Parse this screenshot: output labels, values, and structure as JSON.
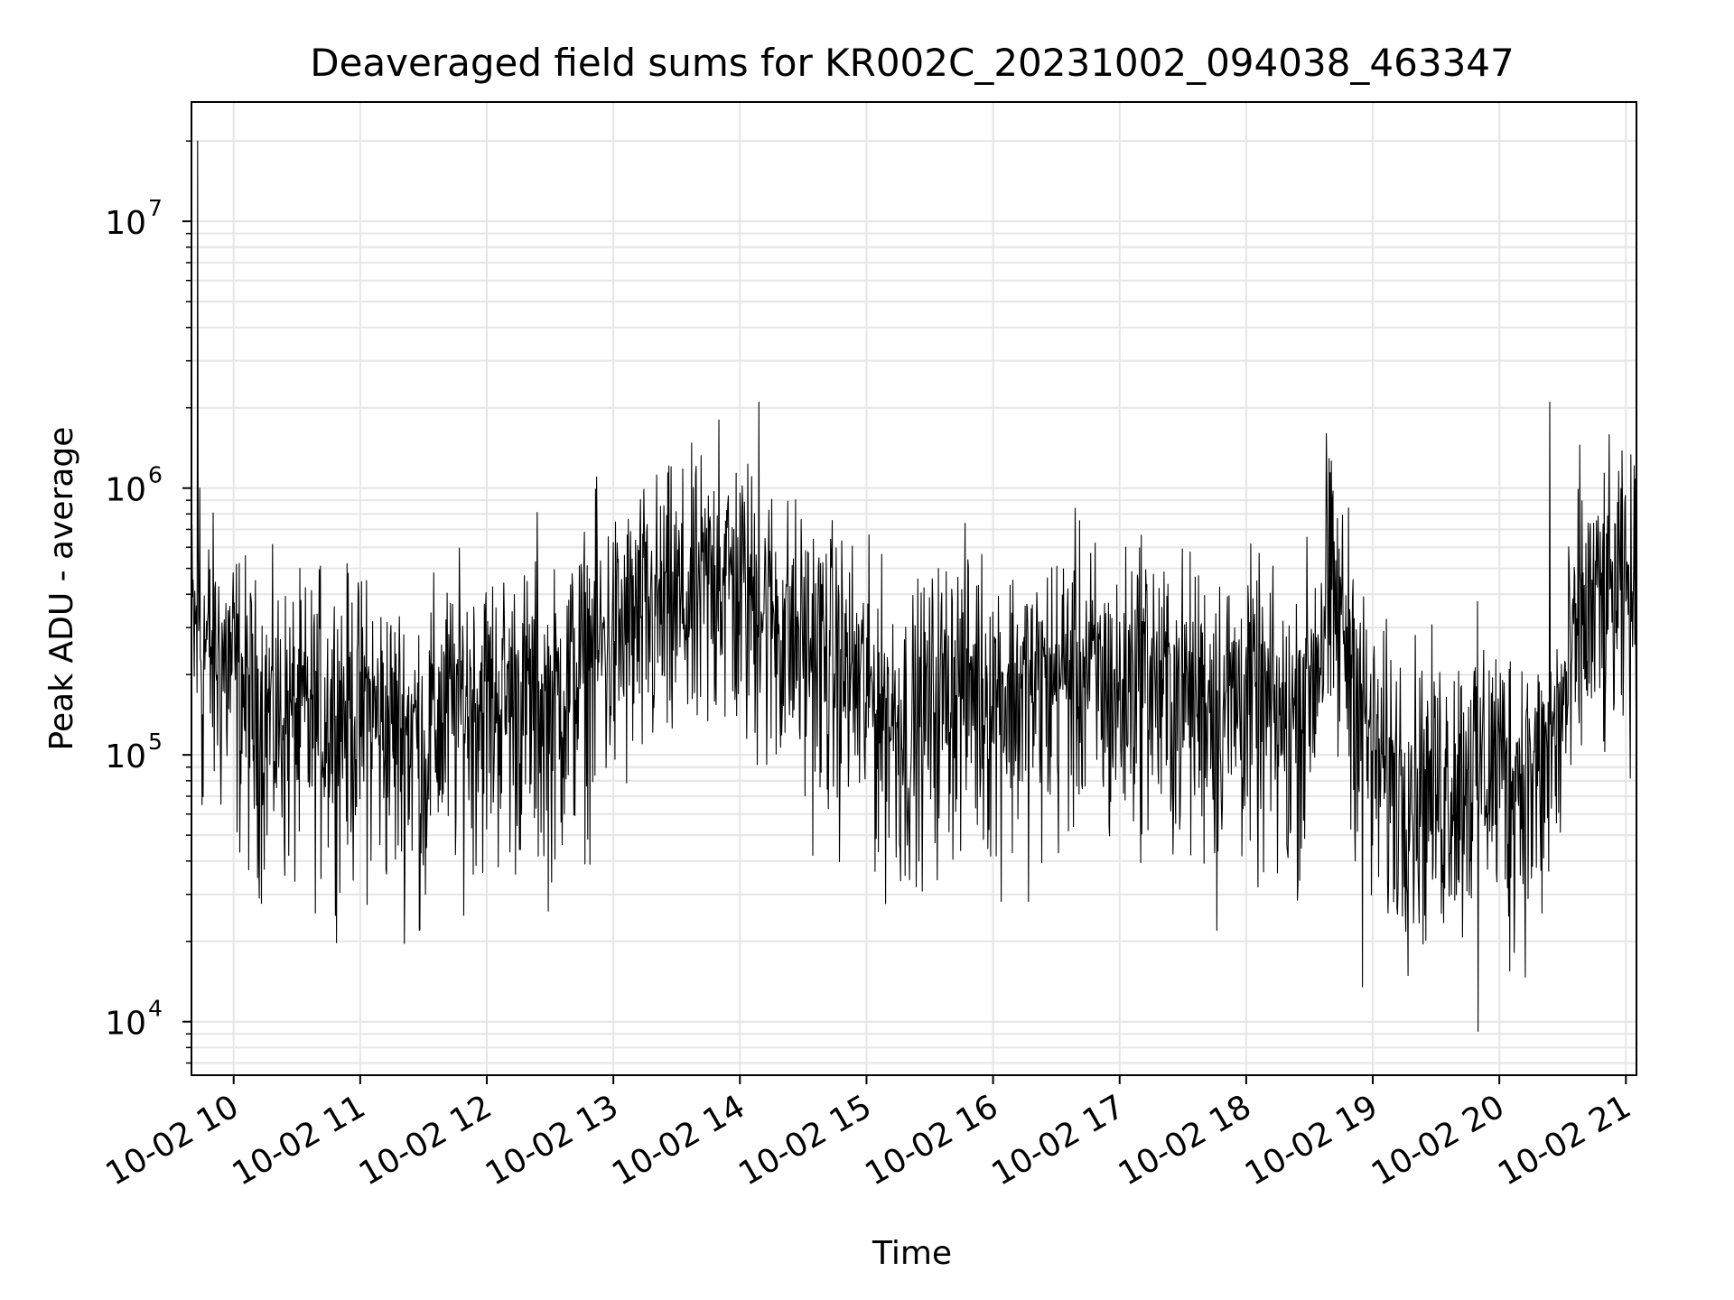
{
  "chart_data": {
    "type": "line",
    "title": "Deaveraged field sums for KR002C_20231002_094038_463347",
    "xlabel": "Time",
    "ylabel": "Peak ADU - average",
    "y_scale": "log",
    "grid": true,
    "grid_minor": true,
    "line_color": "#000000",
    "grid_color": "#e6e6e6",
    "xlim": [
      "2023-10-02 09:40",
      "2023-10-02 21:05"
    ],
    "ylim": [
      6300,
      28000000
    ],
    "x_ticks": [
      "10-02 10",
      "10-02 11",
      "10-02 12",
      "10-02 13",
      "10-02 14",
      "10-02 15",
      "10-02 16",
      "10-02 17",
      "10-02 18",
      "10-02 19",
      "10-02 20",
      "10-02 21"
    ],
    "y_ticks": [
      {
        "base": "10",
        "exp": "4",
        "value": 10000
      },
      {
        "base": "10",
        "exp": "5",
        "value": 100000
      },
      {
        "base": "10",
        "exp": "6",
        "value": 1000000
      },
      {
        "base": "10",
        "exp": "7",
        "value": 10000000
      }
    ],
    "series": [
      {
        "values_sampled_every_10_min": [
          [
            "2023-10-02 09:40",
            300000
          ],
          [
            "2023-10-02 09:50",
            250000
          ],
          [
            "2023-10-02 10:00",
            220000
          ],
          [
            "2023-10-02 10:10",
            150000
          ],
          [
            "2023-10-02 10:20",
            150000
          ],
          [
            "2023-10-02 10:30",
            140000
          ],
          [
            "2023-10-02 10:40",
            150000
          ],
          [
            "2023-10-02 10:50",
            160000
          ],
          [
            "2023-10-02 11:00",
            150000
          ],
          [
            "2023-10-02 11:10",
            140000
          ],
          [
            "2023-10-02 11:20",
            130000
          ],
          [
            "2023-10-02 11:30",
            130000
          ],
          [
            "2023-10-02 11:40",
            150000
          ],
          [
            "2023-10-02 11:50",
            170000
          ],
          [
            "2023-10-02 12:00",
            170000
          ],
          [
            "2023-10-02 12:10",
            170000
          ],
          [
            "2023-10-02 12:20",
            170000
          ],
          [
            "2023-10-02 12:30",
            150000
          ],
          [
            "2023-10-02 12:40",
            200000
          ],
          [
            "2023-10-02 12:50",
            250000
          ],
          [
            "2023-10-02 13:00",
            280000
          ],
          [
            "2023-10-02 13:10",
            320000
          ],
          [
            "2023-10-02 13:20",
            360000
          ],
          [
            "2023-10-02 13:30",
            380000
          ],
          [
            "2023-10-02 13:40",
            400000
          ],
          [
            "2023-10-02 13:50",
            500000
          ],
          [
            "2023-10-02 14:00",
            450000
          ],
          [
            "2023-10-02 14:10",
            380000
          ],
          [
            "2023-10-02 14:20",
            320000
          ],
          [
            "2023-10-02 14:30",
            280000
          ],
          [
            "2023-10-02 14:40",
            250000
          ],
          [
            "2023-10-02 14:50",
            220000
          ],
          [
            "2023-10-02 15:00",
            180000
          ],
          [
            "2023-10-02 15:10",
            150000
          ],
          [
            "2023-10-02 15:20",
            130000
          ],
          [
            "2023-10-02 15:30",
            160000
          ],
          [
            "2023-10-02 15:40",
            200000
          ],
          [
            "2023-10-02 15:50",
            200000
          ],
          [
            "2023-10-02 16:00",
            180000
          ],
          [
            "2023-10-02 16:10",
            180000
          ],
          [
            "2023-10-02 16:20",
            180000
          ],
          [
            "2023-10-02 16:30",
            200000
          ],
          [
            "2023-10-02 16:40",
            230000
          ],
          [
            "2023-10-02 16:50",
            200000
          ],
          [
            "2023-10-02 17:00",
            170000
          ],
          [
            "2023-10-02 17:10",
            250000
          ],
          [
            "2023-10-02 17:20",
            180000
          ],
          [
            "2023-10-02 17:30",
            180000
          ],
          [
            "2023-10-02 17:40",
            180000
          ],
          [
            "2023-10-02 17:50",
            170000
          ],
          [
            "2023-10-02 18:00",
            180000
          ],
          [
            "2023-10-02 18:10",
            150000
          ],
          [
            "2023-10-02 18:20",
            130000
          ],
          [
            "2023-10-02 18:30",
            200000
          ],
          [
            "2023-10-02 18:40",
            420000
          ],
          [
            "2023-10-02 18:50",
            250000
          ],
          [
            "2023-10-02 19:00",
            100000
          ],
          [
            "2023-10-02 19:10",
            90000
          ],
          [
            "2023-10-02 19:20",
            85000
          ],
          [
            "2023-10-02 19:30",
            80000
          ],
          [
            "2023-10-02 19:40",
            90000
          ],
          [
            "2023-10-02 19:50",
            100000
          ],
          [
            "2023-10-02 20:00",
            100000
          ],
          [
            "2023-10-02 20:10",
            90000
          ],
          [
            "2023-10-02 20:20",
            85000
          ],
          [
            "2023-10-02 20:30",
            150000
          ],
          [
            "2023-10-02 20:40",
            350000
          ],
          [
            "2023-10-02 20:50",
            400000
          ],
          [
            "2023-10-02 21:00",
            420000
          ],
          [
            "2023-10-02 21:05",
            400000
          ]
        ],
        "noise_factor_below": 3.0,
        "noise_factor_above": 2.2,
        "spikes": [
          [
            "2023-10-02 09:43",
            20000000
          ],
          [
            "2023-10-02 09:44",
            1000000
          ],
          [
            "2023-10-02 09:45",
            65000
          ],
          [
            "2023-10-02 10:41",
            510000
          ],
          [
            "2023-10-02 11:03",
            450000
          ],
          [
            "2023-10-02 11:28",
            22000
          ],
          [
            "2023-10-02 11:31",
            30000
          ],
          [
            "2023-10-02 12:24",
            810000
          ],
          [
            "2023-10-02 12:52",
            1100000
          ],
          [
            "2023-10-02 13:50",
            1800000
          ],
          [
            "2023-10-02 14:09",
            2100000
          ],
          [
            "2023-10-02 15:25",
            40000
          ],
          [
            "2023-10-02 17:46",
            22000
          ],
          [
            "2023-10-02 18:38",
            1600000
          ],
          [
            "2023-10-02 18:55",
            13500
          ],
          [
            "2023-10-02 19:50",
            9200
          ],
          [
            "2023-10-02 20:05",
            15500
          ],
          [
            "2023-10-02 20:24",
            2100000
          ],
          [
            "2023-10-02 20:38",
            1450000
          ]
        ]
      }
    ]
  }
}
